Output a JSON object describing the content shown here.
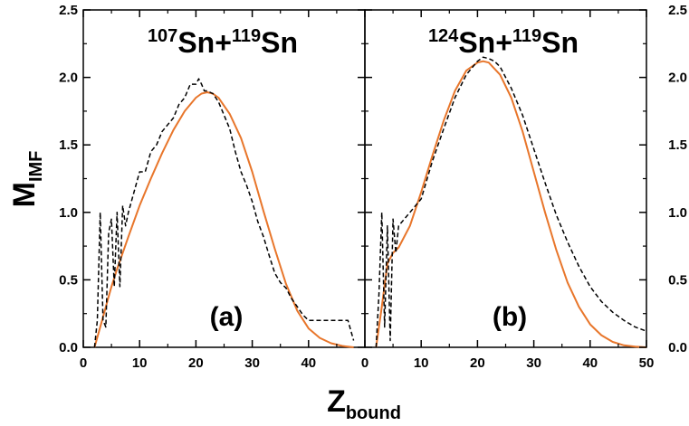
{
  "figure": {
    "ylabel_main": "M",
    "ylabel_sub": "IMF",
    "xlabel_main": "Z",
    "xlabel_sub": "bound"
  },
  "chart_data": [
    {
      "type": "line",
      "panel": "(a)",
      "title_parts": {
        "mass1": "107",
        "el1": "Sn+",
        "mass2": "119",
        "el2": "Sn"
      },
      "xlim": [
        0,
        50
      ],
      "ylim": [
        0,
        2.5
      ],
      "x_ticks": [
        "0",
        "10",
        "20",
        "30",
        "40"
      ],
      "y_ticks": [
        "0.0",
        "0.5",
        "1.0",
        "1.5",
        "2.0",
        "2.5"
      ],
      "colors": {
        "model": "#e8762b",
        "data": "#000000"
      },
      "series": [
        {
          "style": "solid",
          "x": [
            2,
            3,
            4,
            5,
            6,
            8,
            10,
            12,
            14,
            16,
            18,
            20,
            21,
            22,
            23,
            24,
            26,
            28,
            30,
            32,
            34,
            36,
            38,
            40,
            42,
            44,
            46,
            48
          ],
          "y": [
            0.0,
            0.15,
            0.3,
            0.45,
            0.58,
            0.82,
            1.05,
            1.25,
            1.44,
            1.61,
            1.75,
            1.85,
            1.88,
            1.89,
            1.88,
            1.85,
            1.73,
            1.55,
            1.3,
            1.01,
            0.73,
            0.47,
            0.27,
            0.14,
            0.07,
            0.03,
            0.01,
            0.0
          ]
        },
        {
          "style": "dashed",
          "x": [
            2,
            2.5,
            3,
            3.5,
            4,
            4.5,
            5,
            5.5,
            6,
            6.5,
            7,
            7.5,
            8,
            9,
            10,
            11,
            12,
            13,
            14,
            15,
            16,
            17,
            18,
            19,
            20,
            20.5,
            21,
            21.5,
            22,
            23,
            24,
            25,
            26,
            27,
            28,
            29,
            30,
            31,
            32,
            33,
            34,
            35,
            36,
            37,
            38,
            39,
            40,
            41,
            42,
            43,
            44,
            45,
            46,
            47,
            48
          ],
          "y": [
            0.0,
            0.2,
            1.0,
            0.2,
            0.15,
            0.85,
            0.95,
            0.45,
            1.0,
            0.45,
            1.05,
            0.9,
            1.0,
            1.15,
            1.3,
            1.3,
            1.45,
            1.5,
            1.6,
            1.65,
            1.7,
            1.8,
            1.85,
            1.95,
            1.95,
            1.99,
            1.95,
            1.9,
            1.9,
            1.88,
            1.82,
            1.72,
            1.62,
            1.45,
            1.3,
            1.2,
            1.08,
            0.93,
            0.82,
            0.68,
            0.55,
            0.48,
            0.44,
            0.36,
            0.3,
            0.24,
            0.2,
            0.2,
            0.2,
            0.2,
            0.2,
            0.2,
            0.2,
            0.2,
            0.05
          ]
        }
      ]
    },
    {
      "type": "line",
      "panel": "(b)",
      "title_parts": {
        "mass1": "124",
        "el1": "Sn+",
        "mass2": "119",
        "el2": "Sn"
      },
      "xlim": [
        0,
        50
      ],
      "ylim": [
        0,
        2.5
      ],
      "x_ticks": [
        "0",
        "10",
        "20",
        "30",
        "40",
        "50"
      ],
      "y_ticks": [
        "0.0",
        "0.5",
        "1.0",
        "1.5",
        "2.0",
        "2.5"
      ],
      "colors": {
        "model": "#e8762b",
        "data": "#000000"
      },
      "series": [
        {
          "style": "solid",
          "x": [
            2,
            3,
            4,
            5,
            6,
            8,
            10,
            12,
            14,
            16,
            18,
            20,
            21,
            22,
            24,
            26,
            28,
            30,
            32,
            34,
            36,
            38,
            40,
            42,
            44,
            46,
            48,
            50
          ],
          "y": [
            0.0,
            0.3,
            0.62,
            0.7,
            0.74,
            0.9,
            1.15,
            1.42,
            1.68,
            1.9,
            2.05,
            2.11,
            2.12,
            2.11,
            2.02,
            1.85,
            1.6,
            1.3,
            1.0,
            0.72,
            0.48,
            0.3,
            0.17,
            0.09,
            0.04,
            0.015,
            0.005,
            0.0
          ]
        },
        {
          "style": "dashed",
          "x": [
            2,
            2.5,
            3,
            3.5,
            4,
            4.5,
            5,
            5.5,
            6,
            7,
            8,
            9,
            10,
            12,
            14,
            16,
            18,
            20,
            21,
            22,
            23,
            24,
            26,
            28,
            30,
            32,
            34,
            36,
            38,
            40,
            42,
            44,
            46,
            48,
            50
          ],
          "y": [
            0.0,
            0.4,
            1.0,
            0.15,
            0.9,
            0.05,
            0.95,
            0.7,
            0.9,
            0.95,
            1.0,
            1.05,
            1.1,
            1.38,
            1.62,
            1.85,
            2.02,
            2.12,
            2.15,
            2.14,
            2.12,
            2.08,
            1.92,
            1.72,
            1.47,
            1.22,
            0.98,
            0.78,
            0.6,
            0.45,
            0.34,
            0.26,
            0.2,
            0.15,
            0.12
          ]
        }
      ]
    }
  ]
}
